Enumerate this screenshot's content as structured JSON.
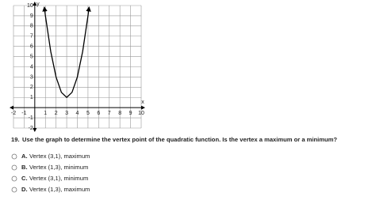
{
  "chart_data": {
    "type": "line",
    "x_label": "x",
    "y_label": "y",
    "x": [
      0.9,
      1,
      1.5,
      2,
      2.5,
      3,
      3.5,
      4,
      4.5,
      5,
      5.1
    ],
    "values": [
      9.82,
      9,
      5.5,
      3,
      1.5,
      1,
      1.5,
      3,
      5.5,
      9,
      9.82
    ],
    "color": "#000000",
    "xlim": [
      -2,
      10
    ],
    "ylim": [
      -2,
      10
    ],
    "xticks": [
      -2,
      -1,
      1,
      2,
      3,
      4,
      5,
      6,
      7,
      8,
      9,
      10
    ],
    "yticks": [
      -2,
      -1,
      1,
      2,
      3,
      4,
      5,
      6,
      7,
      8,
      9,
      10
    ],
    "grid": true
  },
  "question": {
    "number": "19.",
    "text": "Use the graph to determine the vertex point of the quadratic function. Is the vertex a maximum or a minimum?"
  },
  "options": [
    {
      "letter": "A.",
      "text": "Vertex (3,1), maximum"
    },
    {
      "letter": "B.",
      "text": "Vertex (1,3), minimum"
    },
    {
      "letter": "C.",
      "text": "Vertex (3,1), minimum"
    },
    {
      "letter": "D.",
      "text": "Vertex (1,3), maximum"
    }
  ]
}
